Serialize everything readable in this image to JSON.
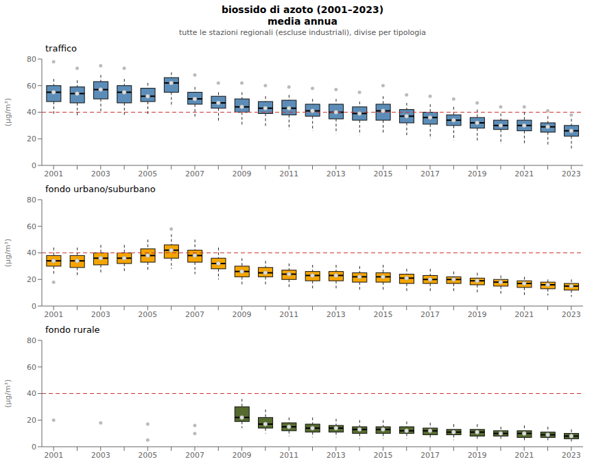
{
  "chart_data": {
    "type": "box",
    "title": "biossido di azoto (2001–2023)\nmedia annua",
    "subtitle": "tutte le stazioni regionali (escluse industriali), divise per tipologia",
    "categories": [
      2001,
      null,
      2003,
      null,
      2005,
      null,
      2007,
      null,
      2009,
      null,
      2011,
      null,
      2013,
      null,
      2015,
      null,
      2017,
      null,
      2019,
      null,
      2021,
      null,
      2023
    ],
    "ylabel": "(μg/m³)",
    "ylim": [
      0,
      80
    ],
    "yticks": [
      0,
      20,
      40,
      60,
      80
    ],
    "grid": false,
    "reference_line": {
      "value": 40,
      "color": "#cc3333",
      "line_style": "dashed"
    },
    "panels": [
      {
        "title": "traffico",
        "color": "#5b8db8",
        "q1": [
          48,
          47,
          50,
          47,
          48,
          55,
          46,
          43,
          40,
          39,
          38,
          37,
          35,
          34,
          34,
          32,
          31,
          30,
          28,
          27,
          26,
          25,
          22
        ],
        "median": [
          55,
          54,
          57,
          55,
          52,
          62,
          50,
          47,
          44,
          43,
          43,
          41,
          40,
          39,
          41,
          37,
          36,
          34,
          32,
          30,
          30,
          29,
          26
        ],
        "q3": [
          60,
          59,
          63,
          60,
          58,
          66,
          55,
          52,
          50,
          48,
          49,
          46,
          46,
          44,
          46,
          42,
          40,
          38,
          36,
          34,
          34,
          32,
          30
        ],
        "whislo": [
          38,
          37,
          40,
          38,
          38,
          44,
          36,
          33,
          30,
          29,
          27,
          26,
          24,
          23,
          24,
          22,
          20,
          19,
          18,
          16,
          16,
          15,
          12
        ],
        "whishi": [
          65,
          64,
          68,
          65,
          62,
          70,
          59,
          55,
          55,
          52,
          53,
          50,
          50,
          48,
          52,
          47,
          46,
          44,
          42,
          39,
          40,
          37,
          35
        ],
        "mean": [
          55,
          54,
          57,
          55,
          52,
          62,
          50,
          47,
          44,
          43,
          43,
          41,
          40,
          39,
          41,
          37,
          36,
          34,
          32,
          30,
          30,
          29,
          26
        ],
        "outliers": [
          [
            78
          ],
          [
            73
          ],
          [
            75
          ],
          [
            73
          ],
          [],
          [],
          [
            68
          ],
          [
            62
          ],
          [
            62
          ],
          [
            60
          ],
          [
            59
          ],
          [
            58
          ],
          [
            57
          ],
          [
            55
          ],
          [
            60
          ],
          [
            53
          ],
          [
            52
          ],
          [
            50
          ],
          [
            47
          ],
          [
            44
          ],
          [
            44
          ],
          [
            41
          ],
          [
            38
          ]
        ]
      },
      {
        "title": "fondo urbano/suburbano",
        "color": "#f5a500",
        "q1": [
          30,
          29,
          31,
          32,
          33,
          36,
          33,
          28,
          22,
          22,
          20,
          19,
          19,
          18,
          18,
          17,
          17,
          17,
          16,
          15,
          14,
          13,
          12
        ],
        "median": [
          34,
          34,
          36,
          36,
          38,
          42,
          38,
          32,
          26,
          25,
          24,
          23,
          23,
          22,
          22,
          21,
          20,
          20,
          19,
          18,
          17,
          16,
          15
        ],
        "q3": [
          38,
          38,
          40,
          40,
          43,
          46,
          42,
          36,
          30,
          29,
          27,
          26,
          26,
          25,
          25,
          24,
          23,
          22,
          21,
          20,
          19,
          18,
          17
        ],
        "whislo": [
          24,
          22,
          24,
          25,
          26,
          28,
          24,
          20,
          16,
          15,
          13,
          12,
          12,
          11,
          11,
          11,
          10,
          10,
          9,
          9,
          8,
          8,
          7
        ],
        "whishi": [
          44,
          44,
          46,
          46,
          50,
          54,
          50,
          44,
          36,
          34,
          32,
          31,
          31,
          30,
          31,
          28,
          28,
          26,
          25,
          23,
          22,
          20,
          20
        ],
        "mean": [
          34,
          34,
          36,
          36,
          38,
          42,
          38,
          32,
          26,
          25,
          24,
          23,
          23,
          22,
          22,
          21,
          20,
          20,
          19,
          18,
          17,
          16,
          15
        ],
        "outliers": [
          [
            18
          ],
          [],
          [],
          [],
          [],
          [
            58
          ],
          [],
          [],
          [],
          [],
          [],
          [],
          [],
          [],
          [],
          [],
          [],
          [],
          [],
          [],
          [],
          [],
          []
        ]
      },
      {
        "title": "fondo rurale",
        "color": "#556b2f",
        "q1": [
          null,
          null,
          null,
          null,
          null,
          null,
          null,
          null,
          19,
          14,
          12,
          11,
          11,
          10,
          10,
          10,
          9,
          9,
          8,
          8,
          7,
          7,
          6
        ],
        "median": [
          null,
          null,
          null,
          null,
          null,
          null,
          null,
          null,
          22,
          17,
          15,
          14,
          14,
          13,
          13,
          12,
          12,
          11,
          11,
          10,
          10,
          9,
          8
        ],
        "q3": [
          null,
          null,
          null,
          null,
          null,
          null,
          null,
          null,
          30,
          22,
          18,
          17,
          16,
          15,
          15,
          15,
          14,
          13,
          13,
          12,
          12,
          11,
          10
        ],
        "whislo": [
          null,
          null,
          null,
          null,
          null,
          null,
          null,
          null,
          14,
          10,
          8,
          7,
          7,
          6,
          6,
          6,
          6,
          5,
          5,
          5,
          4,
          4,
          3
        ],
        "whishi": [
          null,
          null,
          null,
          null,
          null,
          null,
          null,
          null,
          36,
          28,
          22,
          22,
          21,
          20,
          20,
          19,
          18,
          17,
          17,
          15,
          16,
          15,
          13
        ],
        "mean": [
          null,
          null,
          null,
          null,
          null,
          null,
          null,
          null,
          22,
          17,
          15,
          14,
          14,
          13,
          13,
          12,
          12,
          11,
          11,
          10,
          10,
          9,
          8
        ],
        "outliers": [
          [
            20
          ],
          [],
          [
            18
          ],
          [],
          [
            17,
            5
          ],
          [],
          [
            16,
            10
          ],
          [],
          [],
          [],
          [],
          [],
          [],
          [],
          [],
          [],
          [],
          [],
          [],
          [],
          [],
          [],
          []
        ]
      }
    ]
  }
}
